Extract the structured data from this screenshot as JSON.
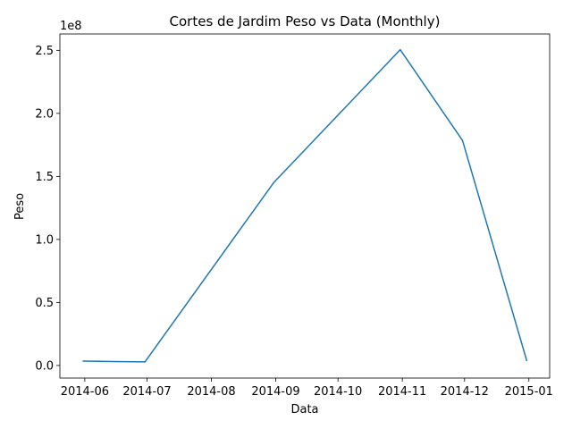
{
  "chart_data": {
    "type": "line",
    "title": "Cortes de Jardim Peso vs Data (Monthly)",
    "xlabel": "Data",
    "ylabel": "Peso",
    "y_offset_label": "1e8",
    "y_scale": 100000000,
    "x_ticks": [
      "2014-06",
      "2014-07",
      "2014-08",
      "2014-09",
      "2014-10",
      "2014-11",
      "2014-12",
      "2015-01"
    ],
    "y_ticks": [
      "0.0",
      "0.5",
      "1.0",
      "1.5",
      "2.0",
      "2.5"
    ],
    "grid": false,
    "series": [
      {
        "color": "#1f77b4",
        "points": [
          {
            "x": "2014-05-31",
            "y": 3500000
          },
          {
            "x": "2014-06-30",
            "y": 2800000
          },
          {
            "x": "2014-08-31",
            "y": 145000000
          },
          {
            "x": "2014-10-31",
            "y": 250500000
          },
          {
            "x": "2014-11-30",
            "y": 178500000
          },
          {
            "x": "2014-12-31",
            "y": 3500000
          }
        ]
      }
    ],
    "xlim": [
      "2014-05-20",
      "2015-01-11"
    ],
    "ylim": [
      -10000000,
      263000000
    ]
  }
}
